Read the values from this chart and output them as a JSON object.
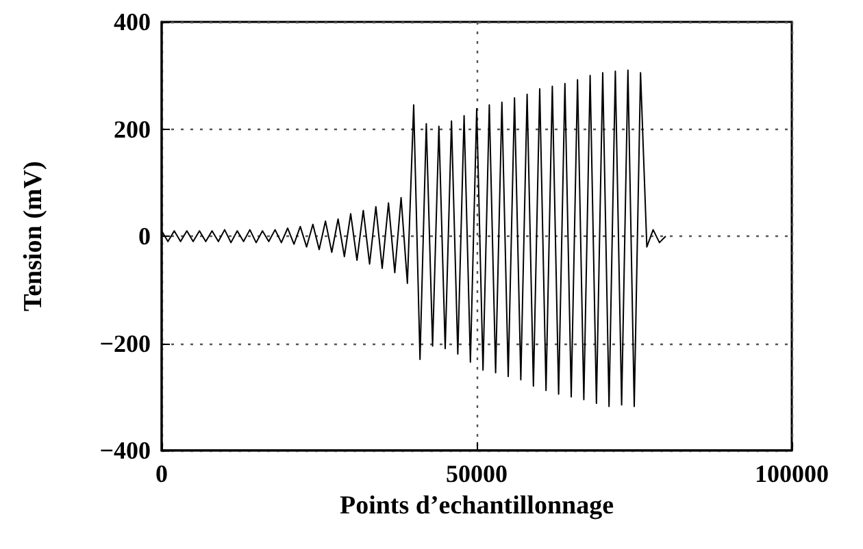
{
  "chart_data": {
    "type": "line",
    "xlabel": "Points d’echantillonnage",
    "ylabel": "Tension (mV)",
    "series": [
      {
        "color": "#000000",
        "x": [
          0,
          1000,
          2000,
          3000,
          4000,
          5000,
          6000,
          7000,
          8000,
          9000,
          10000,
          11000,
          12000,
          13000,
          14000,
          15000,
          16000,
          17000,
          18000,
          19000,
          20000,
          21000,
          22000,
          23000,
          24000,
          25000,
          26000,
          27000,
          28000,
          29000,
          30000,
          31000,
          32000,
          33000,
          34000,
          35000,
          36000,
          37000,
          38000,
          39000,
          40000,
          41000,
          42000,
          43000,
          44000,
          45000,
          46000,
          47000,
          48000,
          49000,
          50000,
          51000,
          52000,
          53000,
          54000,
          55000,
          56000,
          57000,
          58000,
          59000,
          60000,
          61000,
          62000,
          63000,
          64000,
          65000,
          66000,
          67000,
          68000,
          69000,
          70000,
          71000,
          72000,
          73000,
          74000,
          75000,
          76000,
          77000,
          78000,
          79000,
          80000
        ],
        "values": [
          10,
          -10,
          10,
          -10,
          10,
          -10,
          10,
          -10,
          10,
          -10,
          12,
          -12,
          10,
          -10,
          12,
          -12,
          10,
          -10,
          12,
          -12,
          15,
          -15,
          18,
          -20,
          22,
          -25,
          28,
          -30,
          32,
          -38,
          42,
          -45,
          48,
          -52,
          55,
          -60,
          62,
          -68,
          72,
          -88,
          245,
          -230,
          210,
          -205,
          205,
          -210,
          215,
          -220,
          225,
          -235,
          238,
          -250,
          245,
          -255,
          250,
          -262,
          258,
          -268,
          265,
          -280,
          275,
          -288,
          280,
          -295,
          285,
          -300,
          292,
          -305,
          300,
          -312,
          305,
          -318,
          308,
          -315,
          310,
          -318,
          305,
          -20,
          12,
          -12,
          0
        ]
      }
    ],
    "xlim": [
      0,
      100000
    ],
    "xticks": [
      0,
      50000,
      100000
    ],
    "ylim": [
      -400,
      400
    ],
    "yticks": [
      -400,
      -200,
      0,
      200,
      400
    ],
    "grid": true,
    "marker": "none",
    "line_style": "solid"
  }
}
